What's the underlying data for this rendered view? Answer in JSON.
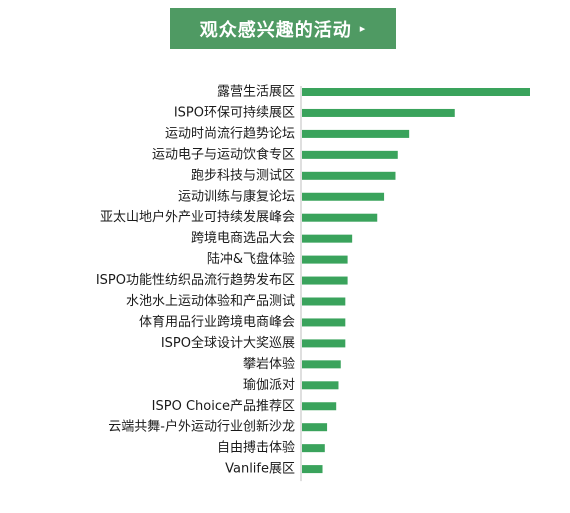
{
  "header": {
    "title": "观众感兴趣的活动",
    "marker": "▸"
  },
  "colors": {
    "bar": "#3aa35c",
    "title_bg": "#4f9a63",
    "axis": "#bfbfbf"
  },
  "chart_data": {
    "type": "bar",
    "orientation": "horizontal",
    "title": "观众感兴趣的活动",
    "categories": [
      "露营生活展区",
      "ISPO环保可持续展区",
      "运动时尚流行趋势论坛",
      "运动电子与运动饮食专区",
      "跑步科技与测试区",
      "运动训练与康复论坛",
      "亚太山地户外产业可持续发展峰会",
      "跨境电商选品大会",
      "陆冲&飞盘体验",
      "ISPO功能性纺织品流行趋势发布区",
      "水池水上运动体验和产品测试",
      "体育用品行业跨境电商峰会",
      "ISPO全球设计大奖巡展",
      "攀岩体验",
      "瑜伽派对",
      "ISPO Choice产品推荐区",
      "云端共舞-户外运动行业创新沙龙",
      "自由搏击体验",
      "Vanlife展区"
    ],
    "values": [
      100,
      67,
      47,
      42,
      41,
      36,
      33,
      22,
      20,
      20,
      19,
      19,
      19,
      17,
      16,
      15,
      11,
      10,
      9
    ],
    "xlim": [
      0,
      100
    ],
    "axis_labels_shown": false,
    "grid": false,
    "legend": "none"
  }
}
